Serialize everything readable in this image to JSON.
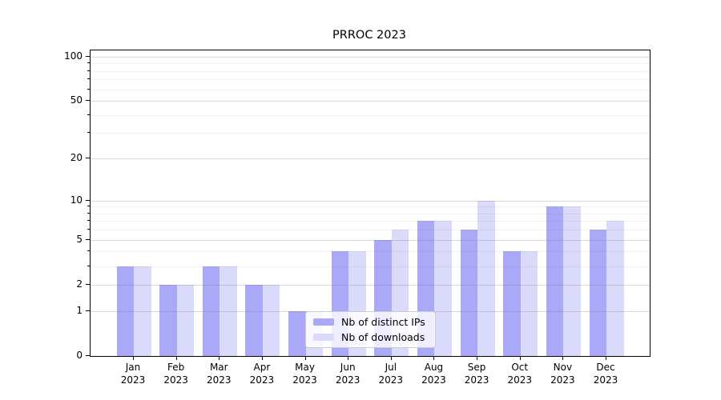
{
  "chart_data": {
    "type": "bar",
    "title": "PRROC 2023",
    "categories": [
      "Jan",
      "Feb",
      "Mar",
      "Apr",
      "May",
      "Jun",
      "Jul",
      "Aug",
      "Sep",
      "Oct",
      "Nov",
      "Dec"
    ],
    "year_label": "2023",
    "series": [
      {
        "name": "Nb of distinct IPs",
        "color": "#a9a9f8",
        "values": [
          3,
          2,
          3,
          2,
          1,
          4,
          5,
          7,
          6,
          4,
          9,
          6
        ]
      },
      {
        "name": "Nb of downloads",
        "color": "#dadafb",
        "values": [
          3,
          2,
          3,
          2,
          1,
          4,
          6,
          7,
          10,
          4,
          9,
          7
        ]
      }
    ],
    "yscale": "log1p",
    "ylim": [
      0,
      110
    ],
    "major_yticks": [
      0,
      1,
      2,
      5,
      10,
      20,
      50,
      100
    ],
    "minor_yticks": [
      3,
      4,
      6,
      7,
      8,
      9,
      30,
      40,
      60,
      70,
      80,
      90
    ],
    "grid": "horizontal",
    "legend_position": "lower-center-inside"
  }
}
